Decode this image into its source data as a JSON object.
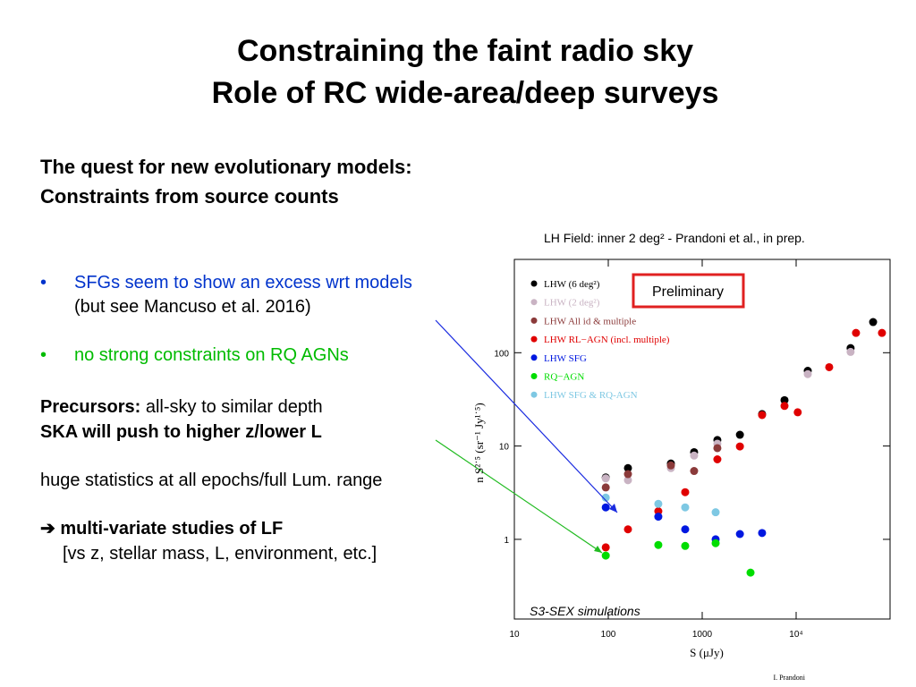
{
  "slide": {
    "title": [
      "Constraining the faint radio sky",
      "Role of RC wide-area/deep surveys"
    ],
    "subtitle": [
      "The quest for new evolutionary models:",
      "Constraints from source counts"
    ],
    "bullets": [
      "SFGs seem to show an excess wrt models",
      "(but see Mancuso et al. 2016)",
      "no strong constraints on RQ AGNs"
    ],
    "precursors_bold": "Precursors:",
    "precursors_rest": " all-sky to similar depth",
    "ska": "SKA will push to higher z/lower L",
    "statistics": "huge statistics at all epochs/full Lum. range",
    "multivariate": "➔ multi-variate studies of LF",
    "multivariate_detail": "[vs z, stellar mass, L, environment, etc.]",
    "caption": "LH Field: inner 2 deg² - Prandoni et al., in prep.",
    "credit": "I. Prandoni"
  },
  "chart_data": {
    "type": "scatter",
    "x_label": "S (μJy)",
    "y_label": "n S²˙⁵ (sr⁻¹ Jy¹˙⁵)",
    "annotations": [
      "Preliminary",
      "S3-SEX simulations"
    ],
    "log_x": true,
    "log_y": true,
    "xlim": [
      10,
      100000
    ],
    "ylim": [
      0.14,
      1000
    ],
    "xticks": [
      10,
      100,
      1000,
      {
        "value": 10000,
        "label": "10⁴"
      }
    ],
    "yticks": [
      1,
      10,
      100
    ],
    "legend": "top-left",
    "series": [
      {
        "name": "LHW (6 deg²)",
        "color": "#000000",
        "x": [
          94,
          162,
          464,
          820,
          1450,
          2520,
          4340,
          7520,
          13300,
          38000,
          66000
        ],
        "values": [
          4.6,
          5.8,
          6.5,
          8.6,
          11.6,
          13.2,
          22,
          31,
          64,
          112,
          213
        ]
      },
      {
        "name": "LHW (2 deg²)",
        "color": "#c9b3c3",
        "x": [
          94,
          162,
          464,
          820,
          1450,
          13300,
          38000
        ],
        "values": [
          4.5,
          4.3,
          5.8,
          7.9,
          10.6,
          59,
          102
        ]
      },
      {
        "name": "LHW All id & multiple",
        "color": "#8b3a3a",
        "x": [
          94,
          162,
          464,
          820,
          1450
        ],
        "values": [
          3.6,
          5.0,
          6.2,
          5.4,
          9.5
        ]
      },
      {
        "name": "LHW RL−AGN (incl. multiple)",
        "color": "#e00000",
        "x": [
          94,
          162,
          341,
          659,
          1450,
          2520,
          4340,
          7520,
          10400,
          22500,
          43400,
          82000
        ],
        "values": [
          0.82,
          1.28,
          2.0,
          3.2,
          7.2,
          9.9,
          21.5,
          26.9,
          23,
          70,
          163,
          163
        ]
      },
      {
        "name": "LHW SFG",
        "color": "#0018e0",
        "x": [
          94,
          341,
          659,
          1390,
          2520,
          4340
        ],
        "values": [
          2.2,
          1.75,
          1.28,
          1.0,
          1.14,
          1.17
        ]
      },
      {
        "name": "RQ−AGN",
        "color": "#00dd00",
        "x": [
          94,
          341,
          659,
          1390,
          3270
        ],
        "values": [
          0.67,
          0.87,
          0.85,
          0.91,
          0.44
        ]
      },
      {
        "name": "LHW SFG & RQ-AGN",
        "color": "#7ec8e3",
        "x": [
          94,
          341,
          659,
          1390
        ],
        "values": [
          2.8,
          2.4,
          2.2,
          1.95
        ]
      }
    ]
  }
}
